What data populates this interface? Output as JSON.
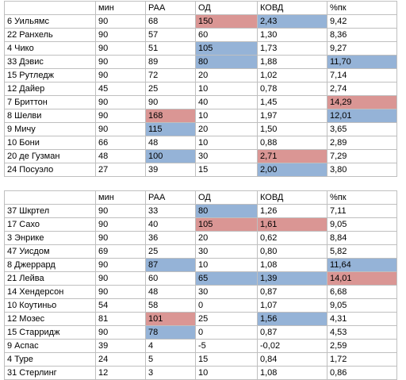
{
  "colors": {
    "red_highlight": "#da9694",
    "blue_highlight": "#95b3d7",
    "grid": "#bfbfbf"
  },
  "tables": [
    {
      "headers": [
        "",
        "мин",
        "РАА",
        "ОД",
        "КОВД",
        "%пк"
      ],
      "rows": [
        {
          "cells": [
            "6 Уильямс",
            "90",
            "68",
            "150",
            "2,43",
            "9,42"
          ],
          "highlights": [
            "",
            "",
            "",
            "red",
            "blue",
            ""
          ]
        },
        {
          "cells": [
            "22 Ранхель",
            "90",
            "57",
            "60",
            "1,30",
            "8,36"
          ],
          "highlights": [
            "",
            "",
            "",
            "",
            "",
            ""
          ]
        },
        {
          "cells": [
            "4 Чико",
            "90",
            "51",
            "105",
            "1,73",
            "9,27"
          ],
          "highlights": [
            "",
            "",
            "",
            "blue",
            "",
            ""
          ]
        },
        {
          "cells": [
            "33 Дэвис",
            "90",
            "89",
            "80",
            "1,88",
            "11,70"
          ],
          "highlights": [
            "",
            "",
            "",
            "blue",
            "",
            "blue"
          ]
        },
        {
          "cells": [
            "15 Рутледж",
            "90",
            "72",
            "20",
            "1,02",
            "7,14"
          ],
          "highlights": [
            "",
            "",
            "",
            "",
            "",
            ""
          ]
        },
        {
          "cells": [
            "12 Дайер",
            "45",
            "25",
            "10",
            "0,78",
            "2,74"
          ],
          "highlights": [
            "",
            "",
            "",
            "",
            "",
            ""
          ]
        },
        {
          "cells": [
            "7 Бриттон",
            "90",
            "90",
            "40",
            "1,45",
            "14,29"
          ],
          "highlights": [
            "",
            "",
            "",
            "",
            "",
            "red"
          ]
        },
        {
          "cells": [
            "8 Шелви",
            "90",
            "168",
            "10",
            "1,97",
            "12,01"
          ],
          "highlights": [
            "",
            "",
            "red",
            "",
            "",
            "blue"
          ]
        },
        {
          "cells": [
            "9 Мичу",
            "90",
            "115",
            "20",
            "1,50",
            "3,65"
          ],
          "highlights": [
            "",
            "",
            "blue",
            "",
            "",
            ""
          ]
        },
        {
          "cells": [
            "10 Бони",
            "66",
            "48",
            "10",
            "0,88",
            "2,89"
          ],
          "highlights": [
            "",
            "",
            "",
            "",
            "",
            ""
          ]
        },
        {
          "cells": [
            "20 де Гузман",
            "48",
            "100",
            "30",
            "2,71",
            "7,29"
          ],
          "highlights": [
            "",
            "",
            "blue",
            "",
            "red",
            ""
          ]
        },
        {
          "cells": [
            "24 Посуэло",
            "27",
            "39",
            "15",
            "2,00",
            "3,80"
          ],
          "highlights": [
            "",
            "",
            "",
            "",
            "blue",
            ""
          ]
        }
      ]
    },
    {
      "headers": [
        "",
        "мин",
        "РАА",
        "ОД",
        "КОВД",
        "%пк"
      ],
      "rows": [
        {
          "cells": [
            "37 Шкртел",
            "90",
            "33",
            "80",
            "1,26",
            "7,11"
          ],
          "highlights": [
            "",
            "",
            "",
            "blue",
            "",
            ""
          ]
        },
        {
          "cells": [
            "17 Сахо",
            "90",
            "40",
            "105",
            "1,61",
            "9,05"
          ],
          "highlights": [
            "",
            "",
            "",
            "red",
            "red",
            ""
          ]
        },
        {
          "cells": [
            "3 Энрике",
            "90",
            "36",
            "20",
            "0,62",
            "8,84"
          ],
          "highlights": [
            "",
            "",
            "",
            "",
            "",
            ""
          ]
        },
        {
          "cells": [
            "47 Уисдом",
            "69",
            "25",
            "30",
            "0,80",
            "5,82"
          ],
          "highlights": [
            "",
            "",
            "",
            "",
            "",
            ""
          ]
        },
        {
          "cells": [
            "8 Джеррард",
            "90",
            "87",
            "10",
            "1,08",
            "11,64"
          ],
          "highlights": [
            "",
            "",
            "blue",
            "",
            "",
            "blue"
          ]
        },
        {
          "cells": [
            "21 Лейва",
            "90",
            "60",
            "65",
            "1,39",
            "14,01"
          ],
          "highlights": [
            "",
            "",
            "",
            "blue",
            "blue",
            "red"
          ]
        },
        {
          "cells": [
            "14 Хендерсон",
            "90",
            "48",
            "30",
            "0,87",
            "6,68"
          ],
          "highlights": [
            "",
            "",
            "",
            "",
            "",
            ""
          ]
        },
        {
          "cells": [
            "10 Коутиньо",
            "54",
            "58",
            "0",
            "1,07",
            "9,05"
          ],
          "highlights": [
            "",
            "",
            "",
            "",
            "",
            ""
          ]
        },
        {
          "cells": [
            "12 Мозес",
            "81",
            "101",
            "25",
            "1,56",
            "4,31"
          ],
          "highlights": [
            "",
            "",
            "red",
            "",
            "blue",
            ""
          ]
        },
        {
          "cells": [
            "15 Старридж",
            "90",
            "78",
            "0",
            "0,87",
            "4,53"
          ],
          "highlights": [
            "",
            "",
            "blue",
            "",
            "",
            ""
          ]
        },
        {
          "cells": [
            "9 Аспас",
            "39",
            "4",
            "-5",
            "-0,02",
            "2,59"
          ],
          "highlights": [
            "",
            "",
            "",
            "",
            "",
            ""
          ]
        },
        {
          "cells": [
            "4 Туре",
            "24",
            "5",
            "15",
            "0,84",
            "1,72"
          ],
          "highlights": [
            "",
            "",
            "",
            "",
            "",
            ""
          ]
        },
        {
          "cells": [
            "31 Стерлинг",
            "12",
            "3",
            "10",
            "1,08",
            "0,86"
          ],
          "highlights": [
            "",
            "",
            "",
            "",
            "",
            ""
          ]
        }
      ]
    }
  ]
}
